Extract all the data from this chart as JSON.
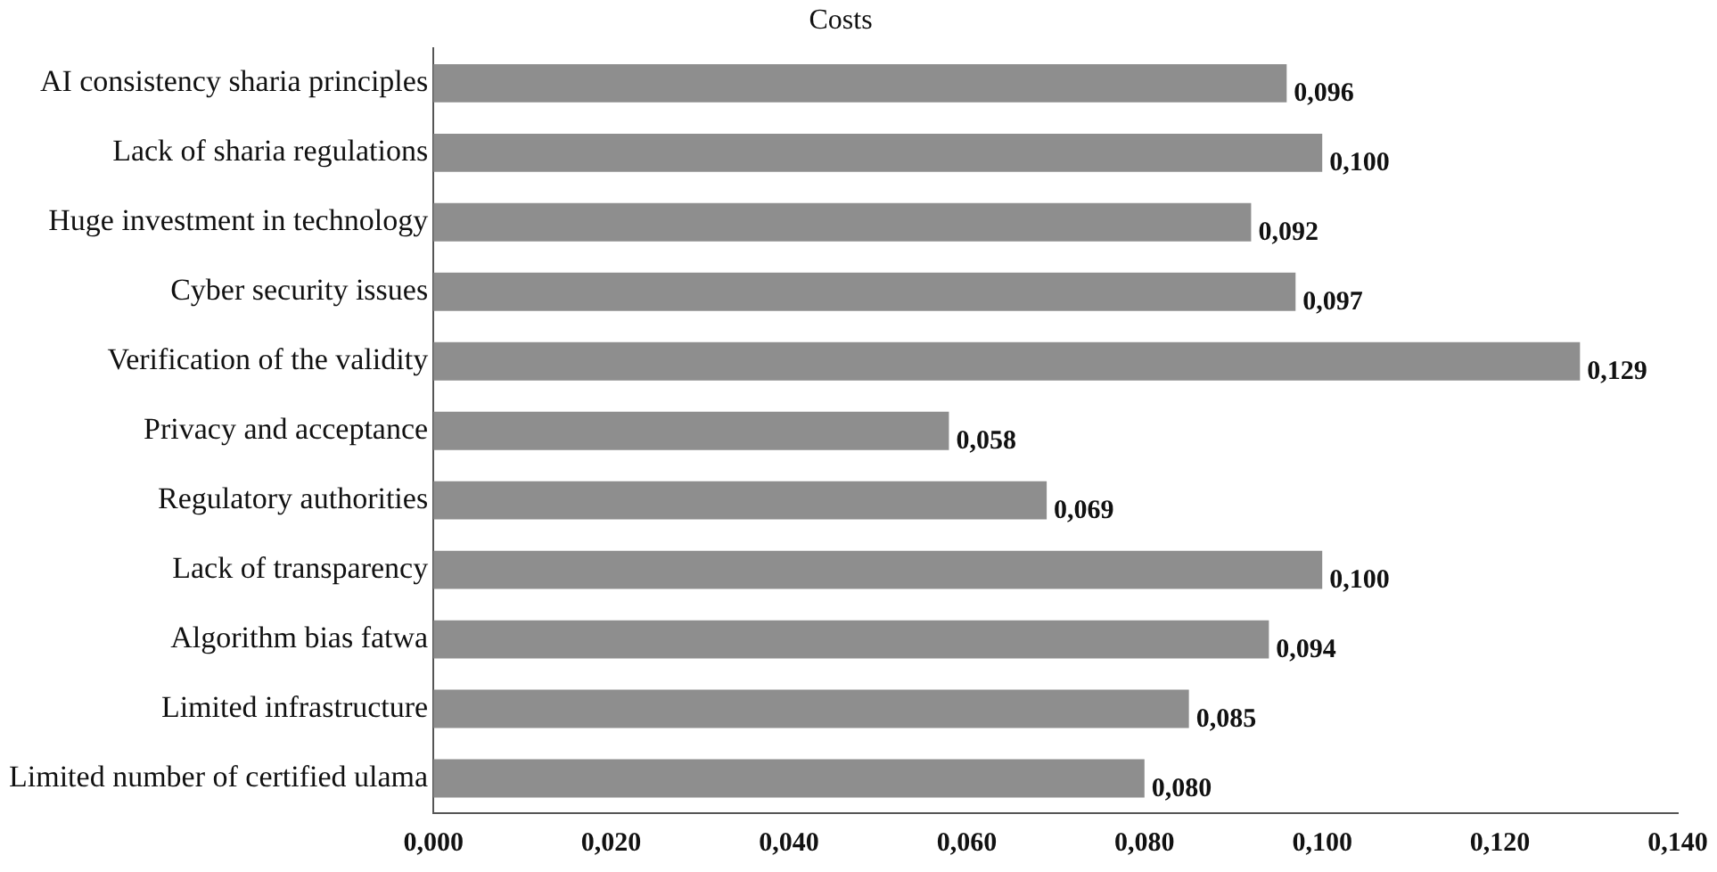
{
  "chart_data": {
    "type": "bar",
    "orientation": "horizontal",
    "title": "Costs",
    "categories": [
      "AI consistency sharia principles",
      "Lack of sharia regulations",
      "Huge investment in technology",
      "Cyber security issues",
      "Verification of the validity",
      "Privacy and acceptance",
      "Regulatory authorities",
      "Lack of transparency",
      "Algorithm bias fatwa",
      "Limited infrastructure",
      "Limited number of certified ulama"
    ],
    "values": [
      0.096,
      0.1,
      0.092,
      0.097,
      0.129,
      0.058,
      0.069,
      0.1,
      0.094,
      0.085,
      0.08
    ],
    "value_labels": [
      "0,096",
      "0,100",
      "0,092",
      "0,097",
      "0,129",
      "0,058",
      "0,069",
      "0,100",
      "0,094",
      "0,085",
      "0,080"
    ],
    "color": "#8e8e8e",
    "xlim": [
      0,
      0.14
    ],
    "xticks": [
      {
        "value": 0,
        "label": "0,000"
      },
      {
        "value": 0.02,
        "label": "0,020"
      },
      {
        "value": 0.04,
        "label": "0,040"
      },
      {
        "value": 0.06,
        "label": "0,060"
      },
      {
        "value": 0.08,
        "label": "0,080"
      },
      {
        "value": 0.1,
        "label": "0,100"
      },
      {
        "value": 0.12,
        "label": "0,120"
      },
      {
        "value": 0.14,
        "label": "0,140"
      }
    ],
    "grid": false,
    "legend": false
  }
}
